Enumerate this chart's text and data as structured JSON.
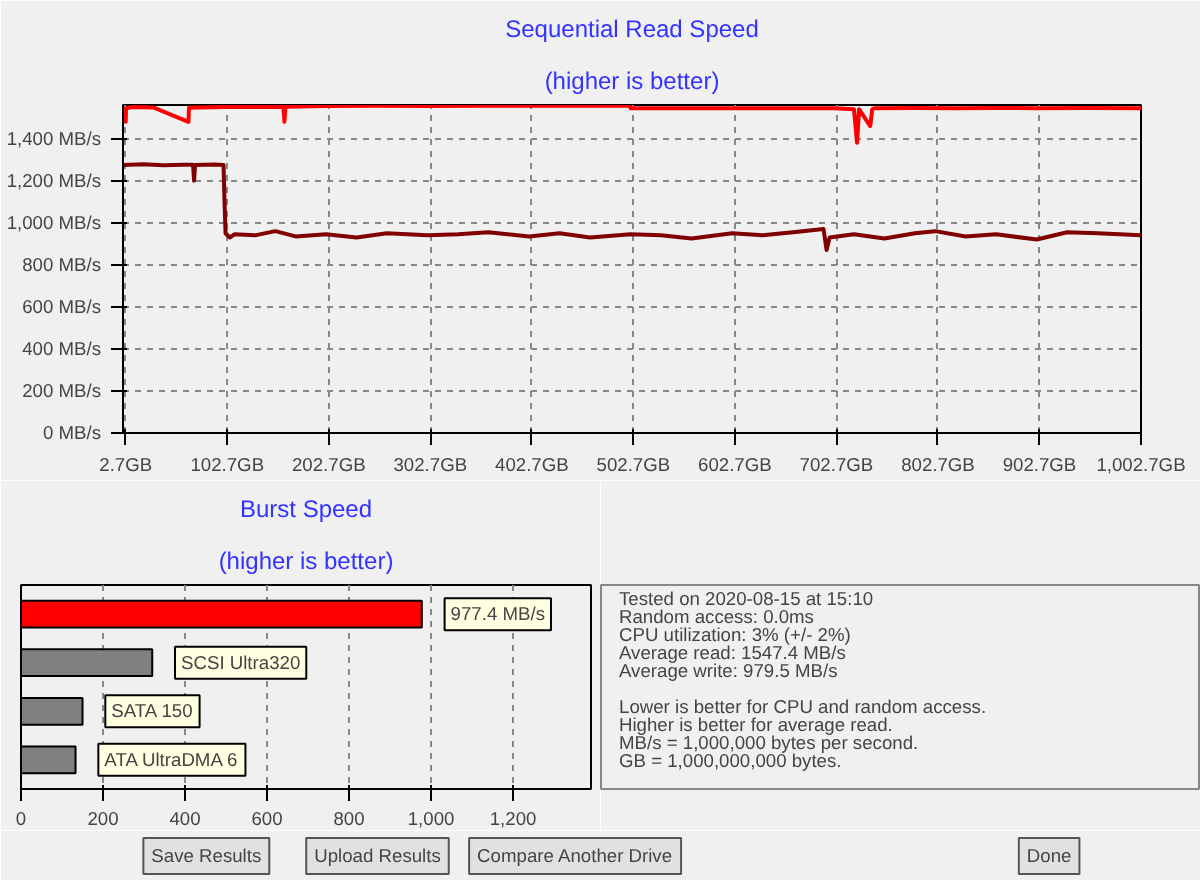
{
  "chart_data": [
    {
      "type": "line",
      "title": "Sequential Read Speed",
      "subtitle": "(higher is better)",
      "grid": true,
      "marker": "none",
      "line_style": "solid",
      "xlim": [
        0,
        1002.7
      ],
      "ylim": [
        0,
        1560
      ],
      "xticks": [
        {
          "value": 2.7,
          "label": "2.7GB"
        },
        {
          "value": 102.7,
          "label": "102.7GB"
        },
        {
          "value": 202.7,
          "label": "202.7GB"
        },
        {
          "value": 302.7,
          "label": "302.7GB"
        },
        {
          "value": 402.7,
          "label": "402.7GB"
        },
        {
          "value": 502.7,
          "label": "502.7GB"
        },
        {
          "value": 602.7,
          "label": "602.7GB"
        },
        {
          "value": 702.7,
          "label": "702.7GB"
        },
        {
          "value": 802.7,
          "label": "802.7GB"
        },
        {
          "value": 902.7,
          "label": "902.7GB"
        },
        {
          "value": 1002.7,
          "label": "1,002.7GB"
        }
      ],
      "yticks": [
        {
          "value": 0,
          "label": "0 MB/s"
        },
        {
          "value": 200,
          "label": "200 MB/s"
        },
        {
          "value": 400,
          "label": "400 MB/s"
        },
        {
          "value": 600,
          "label": "600 MB/s"
        },
        {
          "value": 800,
          "label": "800 MB/s"
        },
        {
          "value": 1000,
          "label": "1,000 MB/s"
        },
        {
          "value": 1200,
          "label": "1,200 MB/s"
        },
        {
          "value": 1400,
          "label": "1,400 MB/s"
        }
      ],
      "series": [
        {
          "color": "#ff0000",
          "x": [
            0,
            2.7,
            3,
            10,
            30,
            64.5,
            65,
            100,
            158,
            159,
            160,
            200,
            250,
            300,
            350,
            400,
            450,
            499,
            500,
            501,
            550,
            600,
            650,
            700,
            720,
            723,
            725,
            736,
            738,
            740,
            780,
            820,
            860,
            900,
            950,
            1002.7
          ],
          "values": [
            1548,
            1480,
            1545,
            1550,
            1548,
            1480,
            1547,
            1550,
            1552,
            1480,
            1552,
            1555,
            1556,
            1555,
            1556,
            1557,
            1556,
            1557,
            1545,
            1545,
            1544,
            1545,
            1544,
            1545,
            1540,
            1380,
            1540,
            1460,
            1540,
            1545,
            1546,
            1545,
            1546,
            1545,
            1546,
            1545
          ]
        },
        {
          "color": "#800000",
          "x": [
            0,
            20,
            40,
            60,
            69,
            70,
            71,
            90,
            99,
            100,
            101,
            105,
            110,
            130,
            150,
            170,
            200,
            230,
            260,
            300,
            330,
            360,
            400,
            430,
            460,
            500,
            530,
            560,
            600,
            630,
            660,
            690,
            693,
            696,
            720,
            750,
            780,
            800,
            830,
            860,
            900,
            930,
            960,
            1002.7
          ],
          "values": [
            1275,
            1278,
            1274,
            1276,
            1276,
            1200,
            1275,
            1277,
            1275,
            1100,
            950,
            930,
            945,
            940,
            960,
            935,
            945,
            930,
            950,
            940,
            945,
            955,
            935,
            950,
            930,
            945,
            940,
            925,
            950,
            940,
            955,
            970,
            870,
            930,
            945,
            925,
            950,
            960,
            935,
            945,
            920,
            955,
            950,
            940
          ]
        }
      ]
    },
    {
      "type": "bar",
      "orientation": "horizontal",
      "title": "Burst Speed",
      "subtitle": "(higher is better)",
      "grid": "x",
      "categories": [
        null,
        "SCSI Ultra320",
        "SATA 150",
        "ATA UltraDMA 6"
      ],
      "values": [
        977.4,
        320,
        150,
        133
      ],
      "colors": [
        "#ff0000",
        "#808080",
        "#808080",
        "#808080"
      ],
      "value_labels": [
        "977.4 MB/s",
        null,
        null,
        null
      ],
      "xlim": [
        0,
        1390
      ],
      "xticks": [
        0,
        200,
        400,
        600,
        800,
        {
          "value": 1000,
          "label": "1,000"
        },
        {
          "value": 1200,
          "label": "1,200"
        }
      ]
    },
    {
      "type": "other",
      "annotations": [
        "Tested on 2020-08-15 at 15:10",
        "Random access: 0.0ms",
        "CPU utilization: 3% (+/- 2%)",
        "Average read: 1547.4 MB/s",
        "Average write: 979.5 MB/s",
        "Lower is better for CPU and random access.",
        "Higher is better for average read.",
        "MB/s = 1,000,000 bytes per second.",
        "GB = 1,000,000,000 bytes."
      ]
    },
    {
      "type": "other",
      "annotations": [
        "Save Results",
        "Upload Results",
        "Compare Another Drive",
        "Done"
      ]
    }
  ]
}
